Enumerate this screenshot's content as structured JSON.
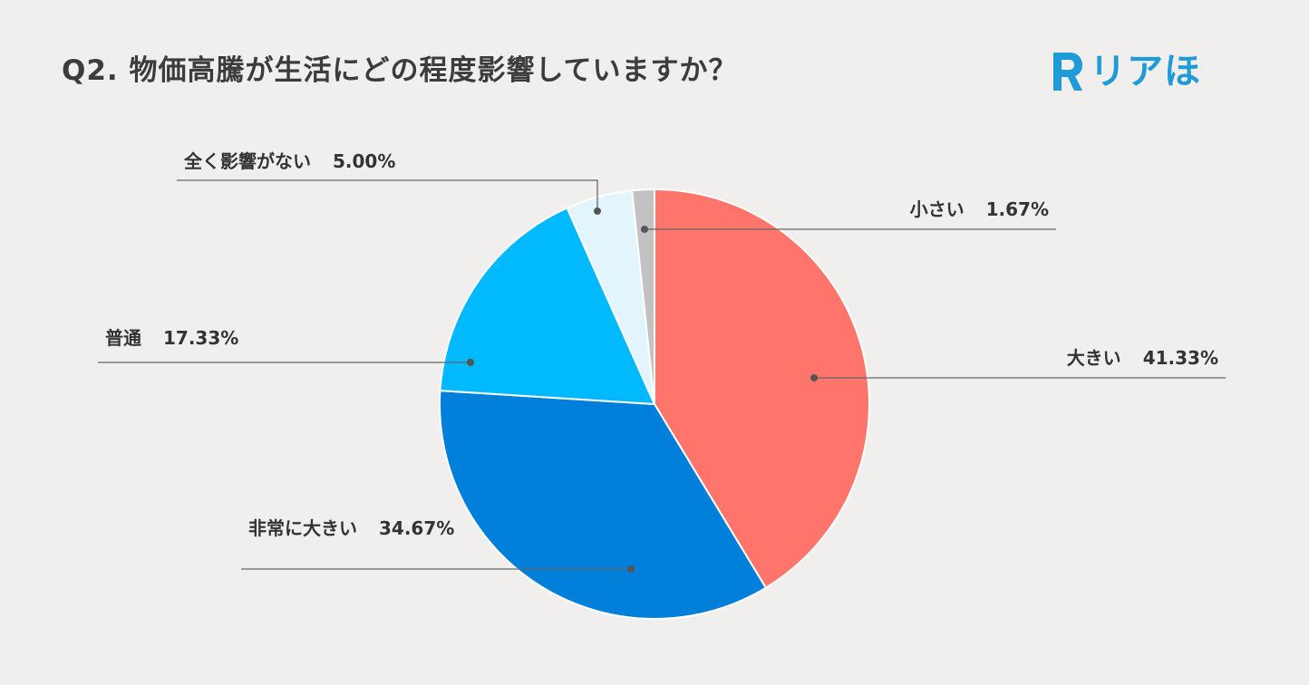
{
  "header": {
    "title": "Q2. 物価高騰が生活にどの程度影響していますか？"
  },
  "logo": {
    "letter": "R",
    "text": "リアほ",
    "color": "#1f9bd8"
  },
  "chart_data": {
    "type": "pie",
    "title": "Q2. 物価高騰が生活にどの程度影響していますか？",
    "unit": "%",
    "slices": [
      {
        "label": "大きい",
        "value": 41.33,
        "display": "41.33%",
        "color": "#ff756b"
      },
      {
        "label": "非常に大きい",
        "value": 34.67,
        "display": "34.67%",
        "color": "#007fdb"
      },
      {
        "label": "普通",
        "value": 17.33,
        "display": "17.33%",
        "color": "#00b9ff"
      },
      {
        "label": "全く影響がない",
        "value": 5.0,
        "display": "5.00%",
        "color": "#e3f5fc"
      },
      {
        "label": "小さい",
        "value": 1.67,
        "display": "1.67%",
        "color": "#c2c2c2"
      }
    ],
    "start": "12 o'clock",
    "direction": "clockwise",
    "legend": "callout labels"
  }
}
